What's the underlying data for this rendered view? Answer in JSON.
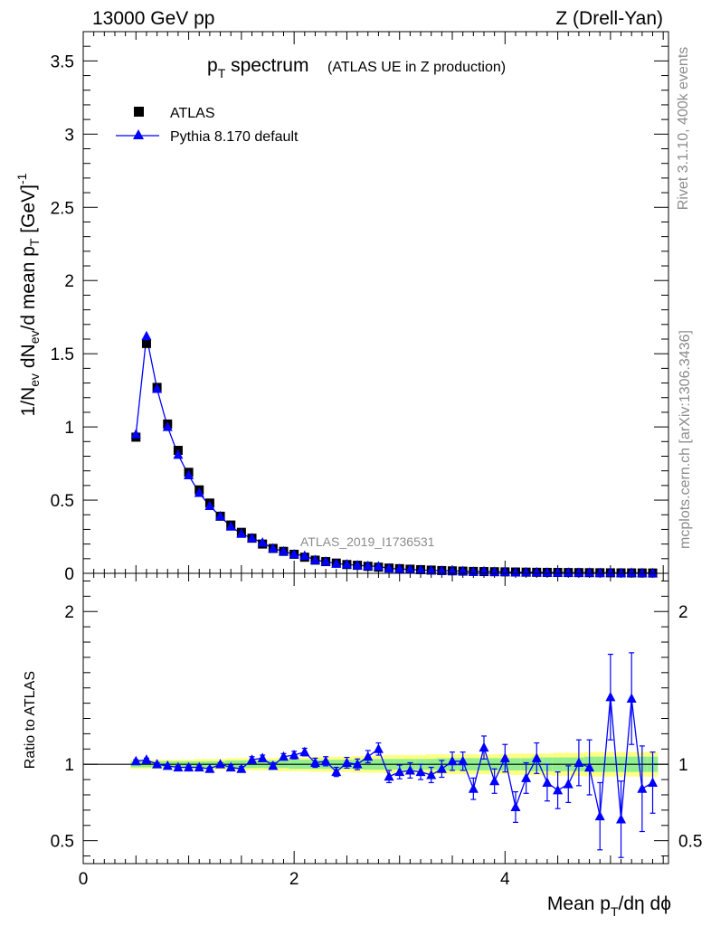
{
  "header": {
    "energy": "13000 GeV pp",
    "process": "Z (Drell-Yan)"
  },
  "side_labels": {
    "rivet": "Rivet 3.1.10,  400k events",
    "mcplots": "mcplots.cern.ch [arXiv:1306.3436]"
  },
  "chart_data": {
    "type": "scatter",
    "title_main": "p",
    "title_sub": "T",
    "title_rest": " spectrum",
    "title_note": "(ATLAS UE in Z production)",
    "analysis_tag": "ATLAS_2019_I1736531",
    "xlabel_main": "Mean p",
    "xlabel_sub": "T",
    "xlabel_rest": "/dη dϕ",
    "ylabel_top": "1/N_ev dN_ev/d mean p_T [GeV]^-1",
    "ylabel_bottom": "Ratio to ATLAS",
    "xlim": [
      0,
      5.55
    ],
    "ylim_top": [
      0,
      3.7
    ],
    "ylim_bottom": [
      0.35,
      2.25
    ],
    "x_ticks": [
      "0",
      "2",
      "4"
    ],
    "y_ticks_top": [
      "0",
      "0.5",
      "1",
      "1.5",
      "2",
      "2.5",
      "3",
      "3.5"
    ],
    "y_ticks_bottom": [
      "0.5",
      "1",
      "2"
    ],
    "legend": {
      "data_label": "ATLAS",
      "mc_label": "Pythia 8.170 default",
      "placement": "top-left"
    },
    "colors": {
      "data": "#000000",
      "mc": "#0000ff",
      "band_inner": "#90ee90",
      "band_outer": "#ffff80"
    },
    "x": [
      0.5,
      0.6,
      0.7,
      0.8,
      0.9,
      1.0,
      1.1,
      1.2,
      1.3,
      1.4,
      1.5,
      1.6,
      1.7,
      1.8,
      1.9,
      2.0,
      2.1,
      2.2,
      2.3,
      2.4,
      2.5,
      2.6,
      2.7,
      2.8,
      2.9,
      3.0,
      3.1,
      3.2,
      3.3,
      3.4,
      3.5,
      3.6,
      3.7,
      3.8,
      3.9,
      4.0,
      4.1,
      4.2,
      4.3,
      4.4,
      4.5,
      4.6,
      4.7,
      4.8,
      4.9,
      5.0,
      5.1,
      5.2,
      5.3,
      5.4
    ],
    "series": [
      {
        "name": "ATLAS",
        "values": [
          0.93,
          1.57,
          1.27,
          1.02,
          0.84,
          0.69,
          0.57,
          0.48,
          0.39,
          0.33,
          0.28,
          0.24,
          0.2,
          0.17,
          0.15,
          0.13,
          0.11,
          0.09,
          0.08,
          0.07,
          0.06,
          0.055,
          0.048,
          0.042,
          0.036,
          0.032,
          0.028,
          0.025,
          0.022,
          0.019,
          0.017,
          0.015,
          0.013,
          0.012,
          0.011,
          0.01,
          0.009,
          0.008,
          0.007,
          0.0065,
          0.006,
          0.0055,
          0.005,
          0.0045,
          0.004,
          0.0035,
          0.003,
          0.0028,
          0.0025,
          0.0022
        ]
      },
      {
        "name": "Pythia 8.170 default",
        "values": [
          0.95,
          1.62,
          1.26,
          1.0,
          0.81,
          0.67,
          0.55,
          0.46,
          0.39,
          0.32,
          0.27,
          0.24,
          0.21,
          0.17,
          0.15,
          0.13,
          0.12,
          0.09,
          0.08,
          0.066,
          0.061,
          0.055,
          0.05,
          0.048,
          0.033,
          0.03,
          0.026,
          0.023,
          0.02,
          0.018,
          0.017,
          0.015,
          0.011,
          0.014,
          0.01,
          0.01,
          0.0065,
          0.0073,
          0.0073,
          0.0057,
          0.005,
          0.0047,
          0.0041,
          0.0044,
          0.0026,
          0.0051,
          0.0019,
          0.0041,
          0.0021,
          0.0019
        ],
        "ratio": [
          1.02,
          1.03,
          1.0,
          0.99,
          0.98,
          0.98,
          0.98,
          0.97,
          1.0,
          0.98,
          0.97,
          1.03,
          1.04,
          0.99,
          1.05,
          1.06,
          1.08,
          1.01,
          1.02,
          0.95,
          1.01,
          1.0,
          1.05,
          1.1,
          0.92,
          0.95,
          0.96,
          0.95,
          0.93,
          0.97,
          1.02,
          1.02,
          0.84,
          1.11,
          0.89,
          1.04,
          0.72,
          0.91,
          1.04,
          0.88,
          0.83,
          0.87,
          1.01,
          0.98,
          0.66,
          1.44,
          0.64,
          1.43,
          0.84,
          0.88
        ],
        "ratio_err": [
          0.01,
          0.01,
          0.01,
          0.01,
          0.01,
          0.01,
          0.01,
          0.01,
          0.01,
          0.015,
          0.015,
          0.02,
          0.02,
          0.02,
          0.02,
          0.025,
          0.025,
          0.03,
          0.03,
          0.03,
          0.035,
          0.035,
          0.04,
          0.04,
          0.04,
          0.045,
          0.05,
          0.05,
          0.05,
          0.055,
          0.06,
          0.06,
          0.07,
          0.075,
          0.08,
          0.09,
          0.1,
          0.1,
          0.1,
          0.12,
          0.12,
          0.12,
          0.15,
          0.18,
          0.22,
          0.28,
          0.25,
          0.3,
          0.28,
          0.2
        ]
      }
    ],
    "band_inner": [
      0.02,
      0.02,
      0.02,
      0.02,
      0.02,
      0.02,
      0.02,
      0.02,
      0.02,
      0.025,
      0.025,
      0.025,
      0.025,
      0.025,
      0.025,
      0.03,
      0.03,
      0.03,
      0.03,
      0.03,
      0.03,
      0.03,
      0.035,
      0.035,
      0.035,
      0.035,
      0.035,
      0.035,
      0.035,
      0.04,
      0.04,
      0.04,
      0.04,
      0.04,
      0.04,
      0.04,
      0.04,
      0.04,
      0.045,
      0.045,
      0.045,
      0.045,
      0.045,
      0.05,
      0.05,
      0.05,
      0.05,
      0.05,
      0.05,
      0.05
    ],
    "band_outer": [
      0.03,
      0.03,
      0.03,
      0.03,
      0.03,
      0.03,
      0.035,
      0.035,
      0.035,
      0.04,
      0.04,
      0.04,
      0.04,
      0.04,
      0.045,
      0.045,
      0.045,
      0.05,
      0.05,
      0.05,
      0.05,
      0.055,
      0.055,
      0.055,
      0.06,
      0.06,
      0.06,
      0.06,
      0.065,
      0.065,
      0.065,
      0.065,
      0.065,
      0.065,
      0.065,
      0.065,
      0.07,
      0.07,
      0.07,
      0.07,
      0.075,
      0.075,
      0.075,
      0.08,
      0.08,
      0.08,
      0.08,
      0.08,
      0.08,
      0.08
    ]
  }
}
